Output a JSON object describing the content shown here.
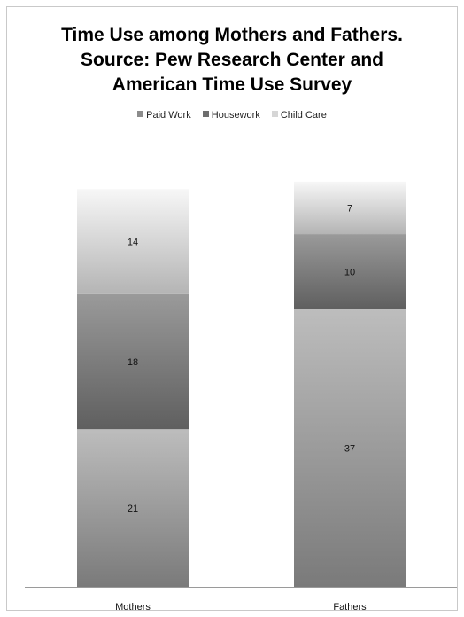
{
  "chart_data": {
    "type": "bar",
    "stacked": true,
    "title": "Time Use among Mothers and Fathers. Source: Pew Research Center and American Time Use Survey",
    "title_lines": [
      "Time Use among Mothers and Fathers.",
      "Source: Pew Research Center and",
      "American Time Use Survey"
    ],
    "categories": [
      "Mothers",
      "Fathers"
    ],
    "series": [
      {
        "name": "Paid Work",
        "values": [
          21,
          37
        ],
        "color": "#8c8c8c"
      },
      {
        "name": "Housework",
        "values": [
          18,
          10
        ],
        "color": "#6e6e6e"
      },
      {
        "name": "Child Care",
        "values": [
          14,
          7
        ],
        "color": "#d6d6d6"
      }
    ],
    "ylim": [
      0,
      60
    ],
    "xlabel": "",
    "ylabel": "",
    "legend": "top-center",
    "grid": false
  }
}
